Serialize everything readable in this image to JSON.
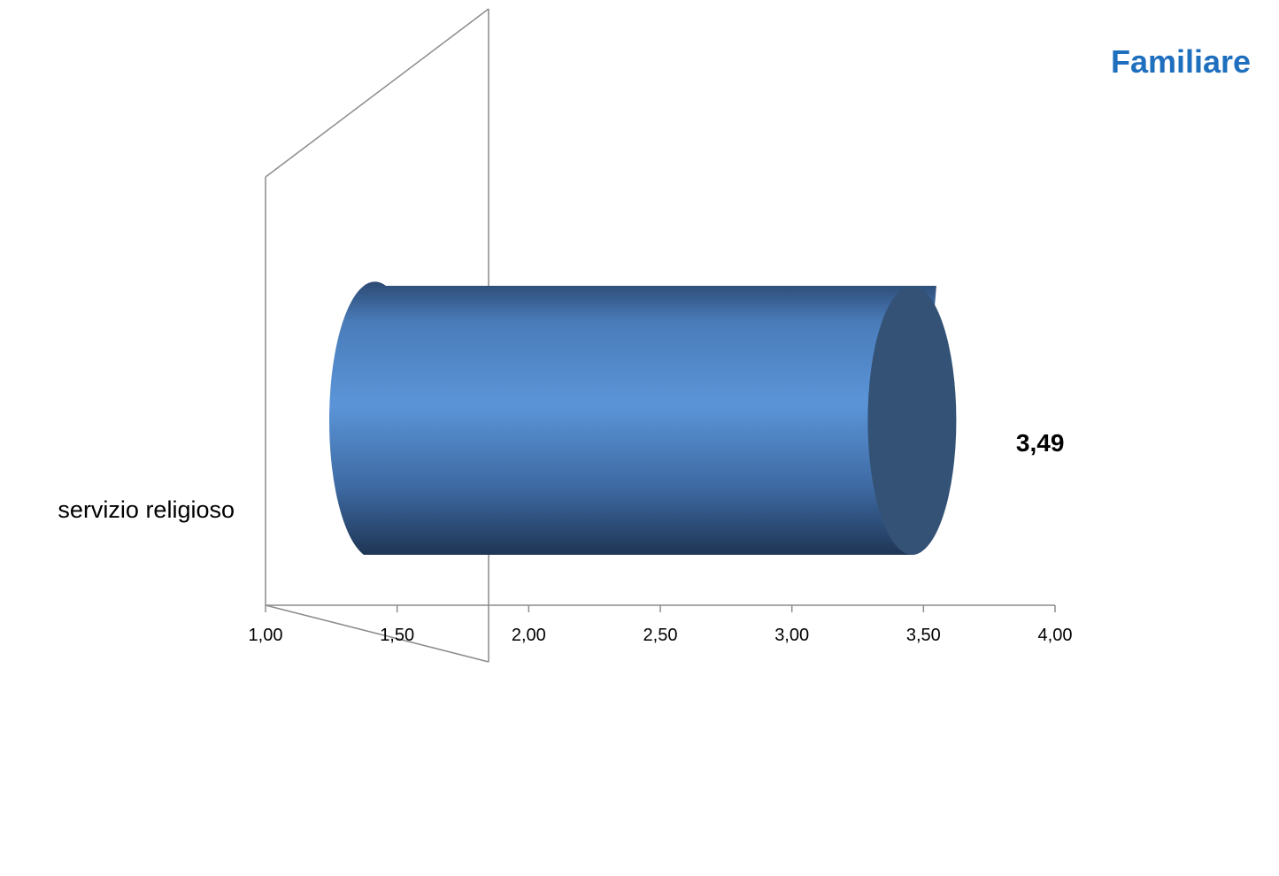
{
  "chart_data": {
    "type": "bar",
    "orientation": "horizontal",
    "style": "3d-cylinder",
    "title": "Familiare",
    "categories": [
      "servizio religioso"
    ],
    "values": [
      3.49
    ],
    "data_labels": [
      "3,49"
    ],
    "xlim": [
      1.0,
      4.0
    ],
    "x_ticks": [
      1.0,
      1.5,
      2.0,
      2.5,
      3.0,
      3.5,
      4.0
    ],
    "x_tick_labels": [
      "1,00",
      "1,50",
      "2,00",
      "2,50",
      "3,00",
      "3,50",
      "4,00"
    ],
    "xlabel": "",
    "ylabel": "",
    "grid": false,
    "legend": "none",
    "colors": {
      "bar_light": "#5b95d8",
      "bar_dark": "#1f3656",
      "bar_end": "#335276",
      "title": "#1f6fbf",
      "wall": "#8c8c8c"
    }
  }
}
